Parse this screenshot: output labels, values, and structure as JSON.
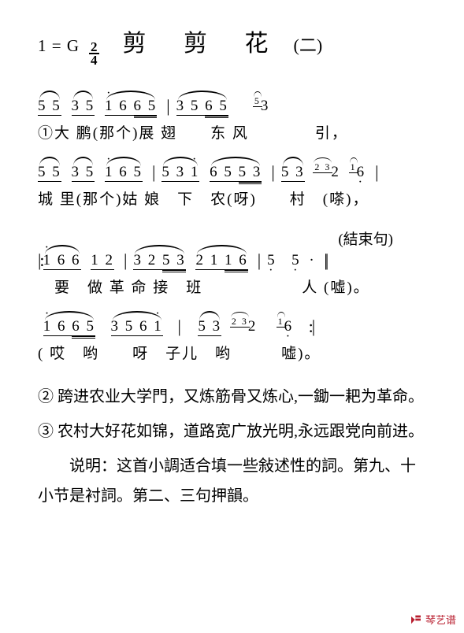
{
  "header": {
    "key": "1 = G",
    "time_num": "2",
    "time_den": "4",
    "title": "剪 剪 花",
    "subtitle": "(二)"
  },
  "lines": [
    {
      "music_html": "<span class='ng slur'><span class='beam1'>5 5</span></span> <span class='ng slur'><span class='beam1'>3 5</span></span>&nbsp;<span class='ng slur'><span class='beam1'><span class='dot-above'>1</span> 6 <span class='beam2'><span class='beam1'>6 5</span></span></span></span><span class='bar'>|</span><span class='ng slur'><span class='beam1'>3 5 <span class='beam2'><span class='beam1'>6 5</span></span></span></span>&nbsp;&nbsp;&nbsp;&nbsp;<span class='grace slur-g'>5</span><span class='ng'>3</span>",
      "lyric": "①大 鹏(那个)展  翅　　东 风　　　　引，"
    },
    {
      "music_html": "<span class='ng slur'><span class='beam1'>5 5</span></span> <span class='ng slur'><span class='beam1'>3 5</span></span>&nbsp;<span class='ng slur'><span class='beam1'><span class='dot-above'>1</span> 6 5</span></span><span class='bar'>|</span><span class='ng slur'><span class='beam1'>5 3 <span class='dot-above'>1</span></span></span>&nbsp;<span class='ng slur'><span class='beam1'>6 5 <span class='beam2'><span class='beam1'>5 3</span></span></span></span><span class='bar'>|</span><span class='ng slur'><span class='beam1'>5 3</span></span> <span class='grace slur-g'>2 3</span><span class='ng'>2</span> <span class='grace slur-g'>1</span><span class='ng'><span class='dot-below'>6</span></span><span class='bar'>|</span>",
      "lyric": "城 里(那个)姑 娘　下　农(呀)　　村　(嗏)，"
    },
    {
      "annotation": "(結束句)",
      "music_html": "<span class='rpt-start'>|:</span><span class='ng slur'><span class='beam1'><span class='dot-above'>1</span> 6 6</span></span>&nbsp;<span class='ng'><span class='beam1'>1 2</span></span><span class='bar'>|</span><span class='ng slur'><span class='beam1'>3 2 <span class='beam2'><span class='beam1'>5 3</span></span></span></span>&nbsp;<span class='ng slur'><span class='beam1'>2 1 <span class='beam2'><span class='beam1'>1 6</span></span></span></span><span class='bar'>|</span><span class='ng'><span class='dot-below'>5</span></span>&nbsp;&nbsp;<span class='ng'><span class='dot-below'>5</span></span> <span class='durdot'>·</span>&nbsp;<span class='dbar'>||</span>",
      "lyric": "　要　做 革 命 接　班　　　　　　人 (嘘)。"
    },
    {
      "music_html": "&nbsp;<span class='ng slur'><span class='beam1'><span class='dot-above'>1</span> 6 <span class='beam2'><span class='beam1'>6 5</span></span></span></span>&nbsp;&nbsp;<span class='ng slur'><span class='beam1'>3 5 6 <span class='dot-above'>1</span></span></span>&nbsp;<span class='bar'>|</span>&nbsp;&nbsp;<span class='ng slur'><span class='beam1'>5 3</span></span> <span class='grace slur-g'>2 3</span><span class='ng'>2</span>&nbsp;&nbsp;&nbsp;<span class='grace slur-g'>1</span><span class='ng'><span class='dot-below'>6</span></span>&nbsp;&nbsp;<span class='rpt-end'>:|</span>",
      "lyric": "( 哎　哟　　呀　子儿　哟　　　嘘)。"
    }
  ],
  "verses": [
    {
      "marker": "②",
      "text": "跨进农业大学門，又炼筋骨又炼心,一鋤一耙为革命。"
    },
    {
      "marker": "③",
      "text": "农村大好花如锦，道路宽广放光明,永远跟党向前进。"
    }
  ],
  "notes": {
    "line1": "　　说明：这首小調适合填一些敍述性的詞。第九、十",
    "line2": "小节是衬詞。第二、三句押韻。"
  },
  "watermark": {
    "text": "琴艺谱",
    "color": "#b81d2e"
  },
  "style": {
    "page_bg": "#ffffff",
    "text_color": "#000000",
    "title_fontsize": 30,
    "body_fontsize": 20,
    "music_fontsize": 19
  }
}
